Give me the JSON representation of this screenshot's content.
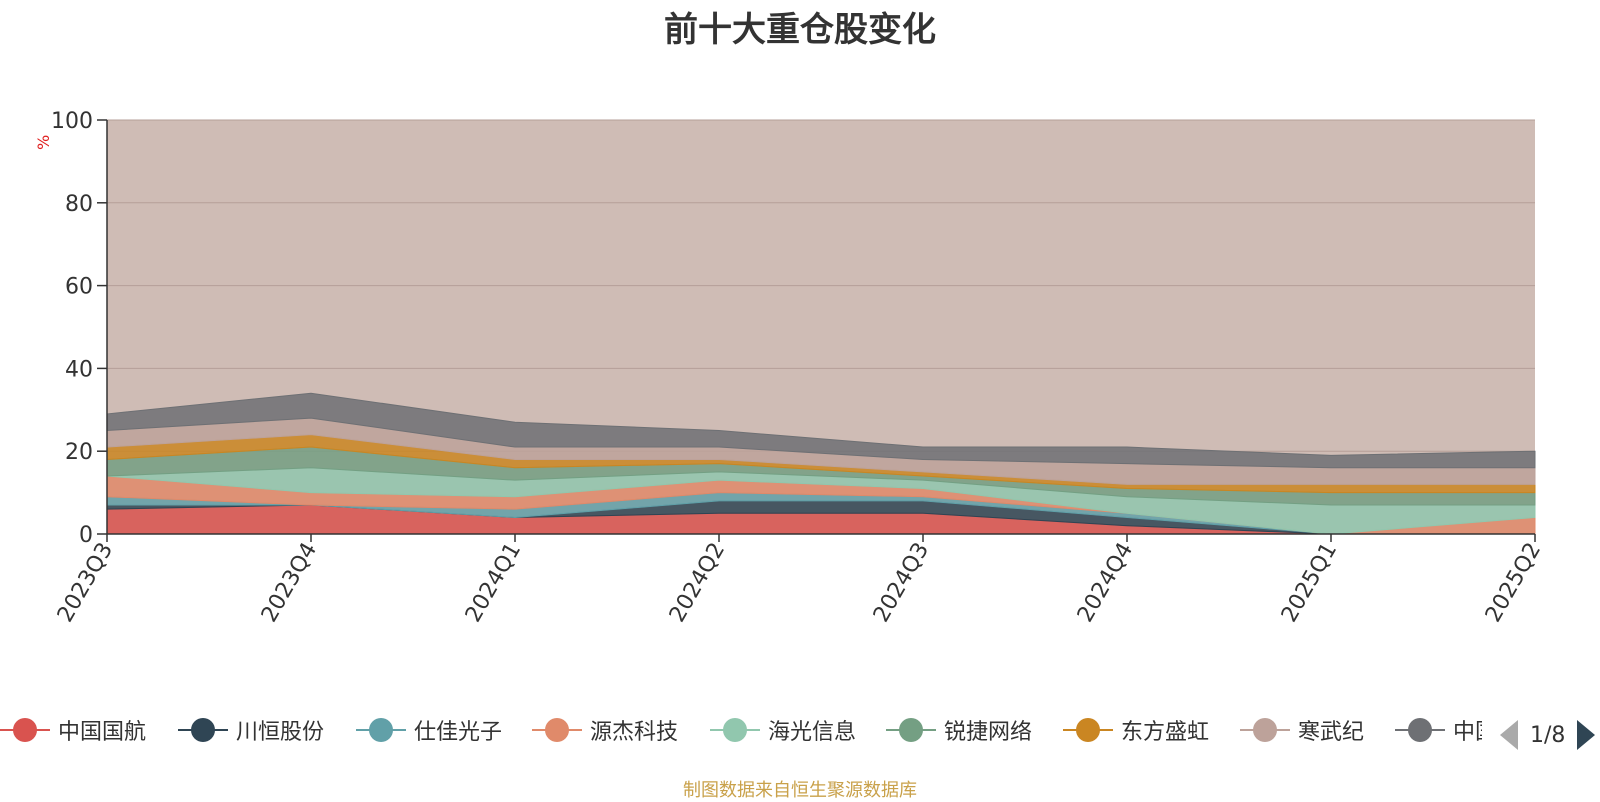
{
  "title": "前十大重仓股变化",
  "source_note": "制图数据来自恒生聚源数据库",
  "legend_page": "1/8",
  "chart_data": {
    "type": "area",
    "title": "前十大重仓股变化",
    "ylabel": "%",
    "ylim": [
      0,
      100
    ],
    "yticks": [
      0,
      20,
      40,
      60,
      80,
      100
    ],
    "x": [
      "2023Q3",
      "2023Q4",
      "2024Q1",
      "2024Q2",
      "2024Q3",
      "2024Q4",
      "2025Q1",
      "2025Q2"
    ],
    "stacked": true,
    "grid": true,
    "series": [
      {
        "name": "中国国航",
        "color": "#d9534f",
        "values": [
          6,
          7,
          4,
          5,
          5,
          2,
          0,
          0
        ]
      },
      {
        "name": "川恒股份",
        "color": "#2f4554",
        "values": [
          1,
          0,
          0,
          3,
          3,
          2,
          0,
          0
        ]
      },
      {
        "name": "仕佳光子",
        "color": "#61a0a8",
        "values": [
          2,
          0,
          2,
          2,
          1,
          1,
          0,
          0
        ]
      },
      {
        "name": "源杰科技",
        "color": "#e08a6a",
        "values": [
          5,
          3,
          3,
          3,
          2,
          0,
          0,
          4
        ]
      },
      {
        "name": "海光信息",
        "color": "#91c7ae",
        "values": [
          0,
          6,
          4,
          2,
          2,
          4,
          7,
          3
        ]
      },
      {
        "name": "锐捷网络",
        "color": "#749f83",
        "values": [
          4,
          5,
          3,
          2,
          1,
          2,
          3,
          3
        ]
      },
      {
        "name": "东方盛虹",
        "color": "#ca8622",
        "values": [
          3,
          3,
          2,
          1,
          1,
          1,
          2,
          2
        ]
      },
      {
        "name": "寒武纪",
        "color": "#bda29a",
        "values": [
          4,
          4,
          3,
          3,
          3,
          5,
          4,
          4
        ]
      },
      {
        "name": "中国中免",
        "color": "#6e7074",
        "values": [
          4,
          6,
          6,
          4,
          3,
          4,
          3,
          4
        ]
      }
    ]
  }
}
